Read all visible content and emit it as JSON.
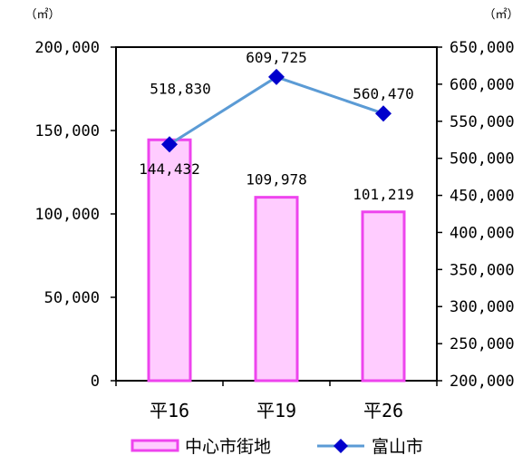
{
  "chart_data": {
    "type": "bar+line",
    "categories": [
      "平16",
      "平19",
      "平26"
    ],
    "series": [
      {
        "name": "中心市街地",
        "chart": "bar",
        "axis": "left",
        "values": [
          144432,
          109978,
          101219
        ],
        "labels": [
          "144,432",
          "109,978",
          "101,219"
        ],
        "fill": "#ffccff",
        "stroke": "#ee44ee"
      },
      {
        "name": "富山市",
        "chart": "line",
        "axis": "right",
        "values": [
          518830,
          609725,
          560470
        ],
        "labels": [
          "518,830",
          "609,725",
          "560,470"
        ],
        "line_color": "#5b9bd5",
        "marker_color": "#0000cc",
        "marker": "diamond"
      }
    ],
    "y_left": {
      "unit": "（㎡）",
      "ylim": [
        0,
        200000
      ],
      "ticks": [
        0,
        50000,
        100000,
        150000,
        200000
      ],
      "tick_labels": [
        "0",
        "50,000",
        "100,000",
        "150,000",
        "200,000"
      ]
    },
    "y_right": {
      "unit": "（㎡）",
      "ylim": [
        200000,
        650000
      ],
      "ticks": [
        200000,
        250000,
        300000,
        350000,
        400000,
        450000,
        500000,
        550000,
        600000,
        650000
      ],
      "tick_labels": [
        "200,000",
        "250,000",
        "300,000",
        "350,000",
        "400,000",
        "450,000",
        "500,000",
        "550,000",
        "600,000",
        "650,000"
      ]
    },
    "grid": false,
    "legend": {
      "position": "bottom"
    }
  }
}
